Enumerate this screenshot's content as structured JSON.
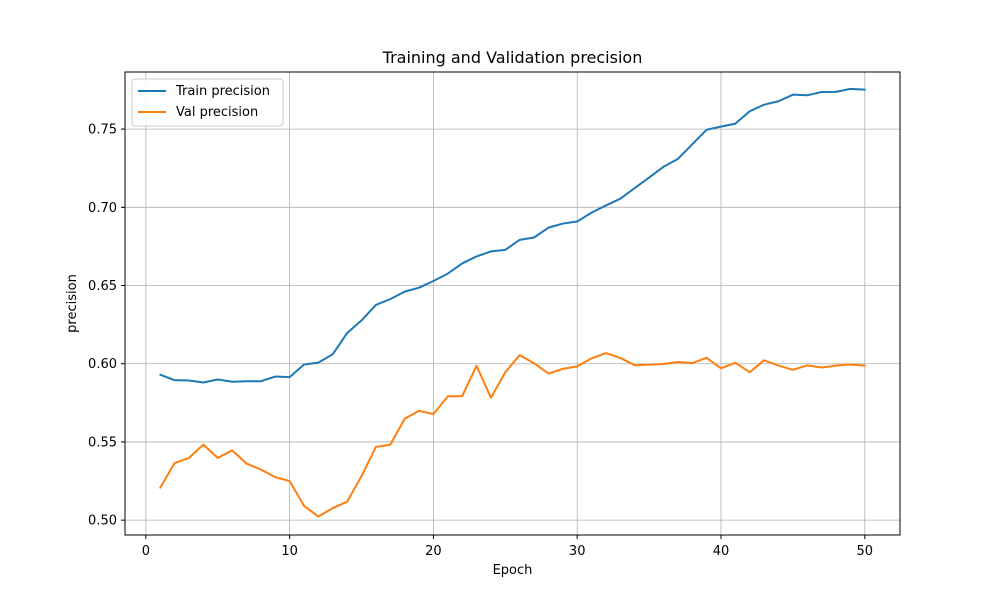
{
  "chart_data": {
    "type": "line",
    "title": "Training and Validation precision",
    "xlabel": "Epoch",
    "ylabel": "precision",
    "xlim": [
      -1.45,
      52.45
    ],
    "ylim": [
      0.4905,
      0.7865
    ],
    "xticks": [
      0,
      10,
      20,
      30,
      40,
      50
    ],
    "yticks": [
      0.5,
      0.55,
      0.6,
      0.65,
      0.7,
      0.75
    ],
    "grid": true,
    "legend_position": "top-left",
    "x": [
      1,
      2,
      3,
      4,
      5,
      6,
      7,
      8,
      9,
      10,
      11,
      12,
      13,
      14,
      15,
      16,
      17,
      18,
      19,
      20,
      21,
      22,
      23,
      24,
      25,
      26,
      27,
      28,
      29,
      30,
      31,
      32,
      33,
      34,
      35,
      36,
      37,
      38,
      39,
      40,
      41,
      42,
      43,
      44,
      45,
      46,
      47,
      48,
      49,
      50
    ],
    "series": [
      {
        "name": "Train precision",
        "color": "#1f77b4",
        "values": [
          0.593,
          0.5895,
          0.5893,
          0.588,
          0.5899,
          0.5885,
          0.5888,
          0.5888,
          0.5918,
          0.5914,
          0.5995,
          0.6007,
          0.6061,
          0.6196,
          0.6277,
          0.6376,
          0.6413,
          0.6461,
          0.6486,
          0.6529,
          0.6576,
          0.6641,
          0.6686,
          0.6718,
          0.6728,
          0.6792,
          0.6807,
          0.687,
          0.6896,
          0.6909,
          0.6966,
          0.7012,
          0.7055,
          0.7123,
          0.719,
          0.7259,
          0.7309,
          0.7403,
          0.7496,
          0.7516,
          0.7535,
          0.7614,
          0.7656,
          0.7678,
          0.772,
          0.7716,
          0.7737,
          0.7738,
          0.7757,
          0.7752
        ]
      },
      {
        "name": "Val precision",
        "color": "#ff7f0e",
        "values": [
          0.5207,
          0.5365,
          0.5398,
          0.5483,
          0.5398,
          0.5446,
          0.5362,
          0.5323,
          0.5275,
          0.525,
          0.5091,
          0.5023,
          0.5077,
          0.5118,
          0.5281,
          0.5468,
          0.5482,
          0.5648,
          0.5699,
          0.5678,
          0.5791,
          0.5793,
          0.5987,
          0.5782,
          0.5946,
          0.6055,
          0.6003,
          0.5937,
          0.5967,
          0.5983,
          0.6034,
          0.6068,
          0.6037,
          0.599,
          0.5994,
          0.5998,
          0.6011,
          0.6004,
          0.6038,
          0.5971,
          0.6006,
          0.5946,
          0.6022,
          0.5988,
          0.5961,
          0.5989,
          0.5976,
          0.5988,
          0.5995,
          0.5988
        ]
      }
    ]
  }
}
